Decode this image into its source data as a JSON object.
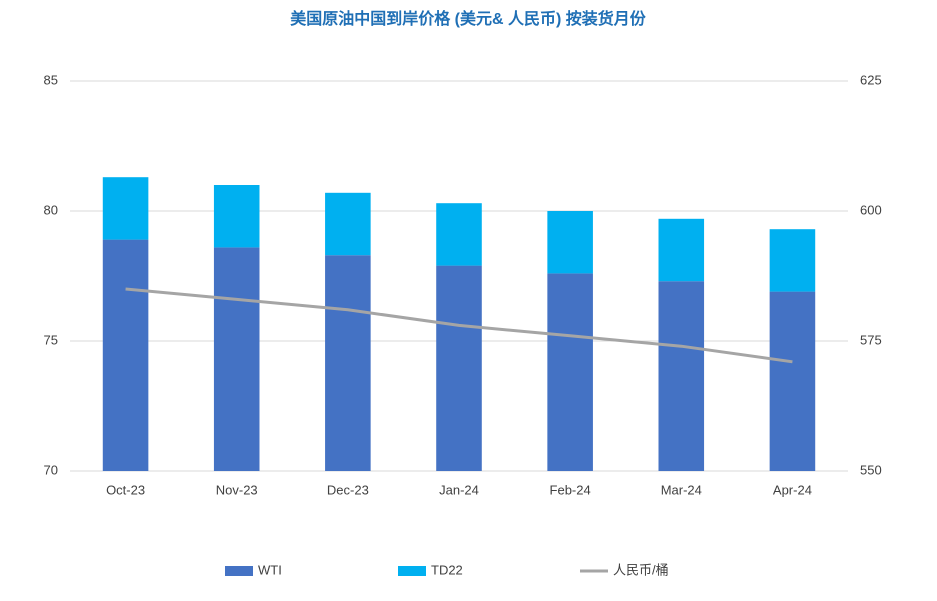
{
  "chart_data": {
    "type": "bar",
    "title": "美国原油中国到岸价格 (美元& 人民币) 按装货月份",
    "categories": [
      "Oct-23",
      "Nov-23",
      "Dec-23",
      "Jan-24",
      "Feb-24",
      "Mar-24",
      "Apr-24"
    ],
    "stacked": true,
    "series": [
      {
        "name": "WTI",
        "color": "#4472c4",
        "type": "bar",
        "values": [
          78.9,
          78.6,
          78.3,
          77.9,
          77.6,
          77.3,
          76.9
        ]
      },
      {
        "name": "TD22",
        "color": "#00b0f0",
        "type": "bar",
        "values": [
          2.4,
          2.4,
          2.4,
          2.4,
          2.4,
          2.4,
          2.4
        ]
      },
      {
        "name": "人民币/桶",
        "color": "#a5a5a5",
        "type": "line",
        "axis": "y2",
        "values": [
          585,
          583,
          581,
          578,
          576,
          574,
          571
        ]
      }
    ],
    "ylim": [
      70,
      85
    ],
    "yticks": [
      70,
      75,
      80,
      85
    ],
    "y2lim": [
      550,
      625
    ],
    "y2ticks": [
      550,
      575,
      600,
      625
    ],
    "grid": true,
    "legend": "bottom"
  }
}
